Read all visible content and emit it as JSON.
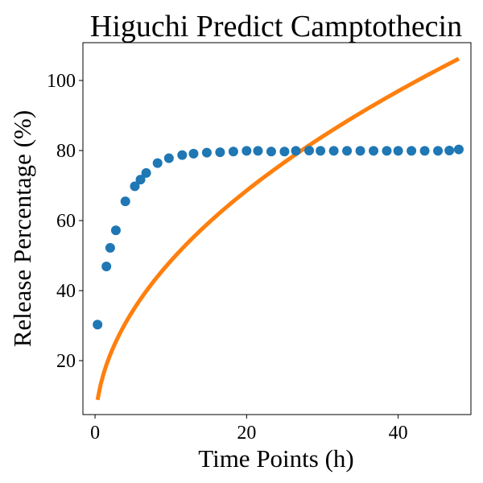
{
  "chart_data": {
    "type": "scatter",
    "title": "Higuchi Predict Camptothecin",
    "xlabel": "Time Points (h)",
    "ylabel": "Release Percentage (%)",
    "xlim": [
      -1.6,
      49.6
    ],
    "ylim": [
      4.6,
      110.8
    ],
    "xticks": [
      0,
      20,
      40
    ],
    "yticks": [
      20,
      40,
      60,
      80,
      100
    ],
    "grid": false,
    "series": [
      {
        "kind": "scatter",
        "color": "#1f77b4",
        "x": [
          0.33,
          1.5,
          2.0,
          2.75,
          4.0,
          5.25,
          6.0,
          6.75,
          8.25,
          9.75,
          11.5,
          13.0,
          14.75,
          16.5,
          18.25,
          20.0,
          21.5,
          23.25,
          25.0,
          26.5,
          28.25,
          29.75,
          31.5,
          33.25,
          35.0,
          36.75,
          38.5,
          40.0,
          41.75,
          43.5,
          45.25,
          46.75,
          48.0
        ],
        "y": [
          30.3,
          46.9,
          52.2,
          57.2,
          65.5,
          69.8,
          71.7,
          73.6,
          76.4,
          77.8,
          78.7,
          79.1,
          79.4,
          79.5,
          79.7,
          79.9,
          79.9,
          79.7,
          79.7,
          79.9,
          80.0,
          79.9,
          79.9,
          79.9,
          79.9,
          79.9,
          79.9,
          79.9,
          79.9,
          79.9,
          79.9,
          80.0,
          80.3
        ]
      },
      {
        "kind": "line",
        "color": "#ff7f0e",
        "higuchi_k": 15.33,
        "x_range": [
          0.33,
          48.0
        ]
      }
    ]
  }
}
